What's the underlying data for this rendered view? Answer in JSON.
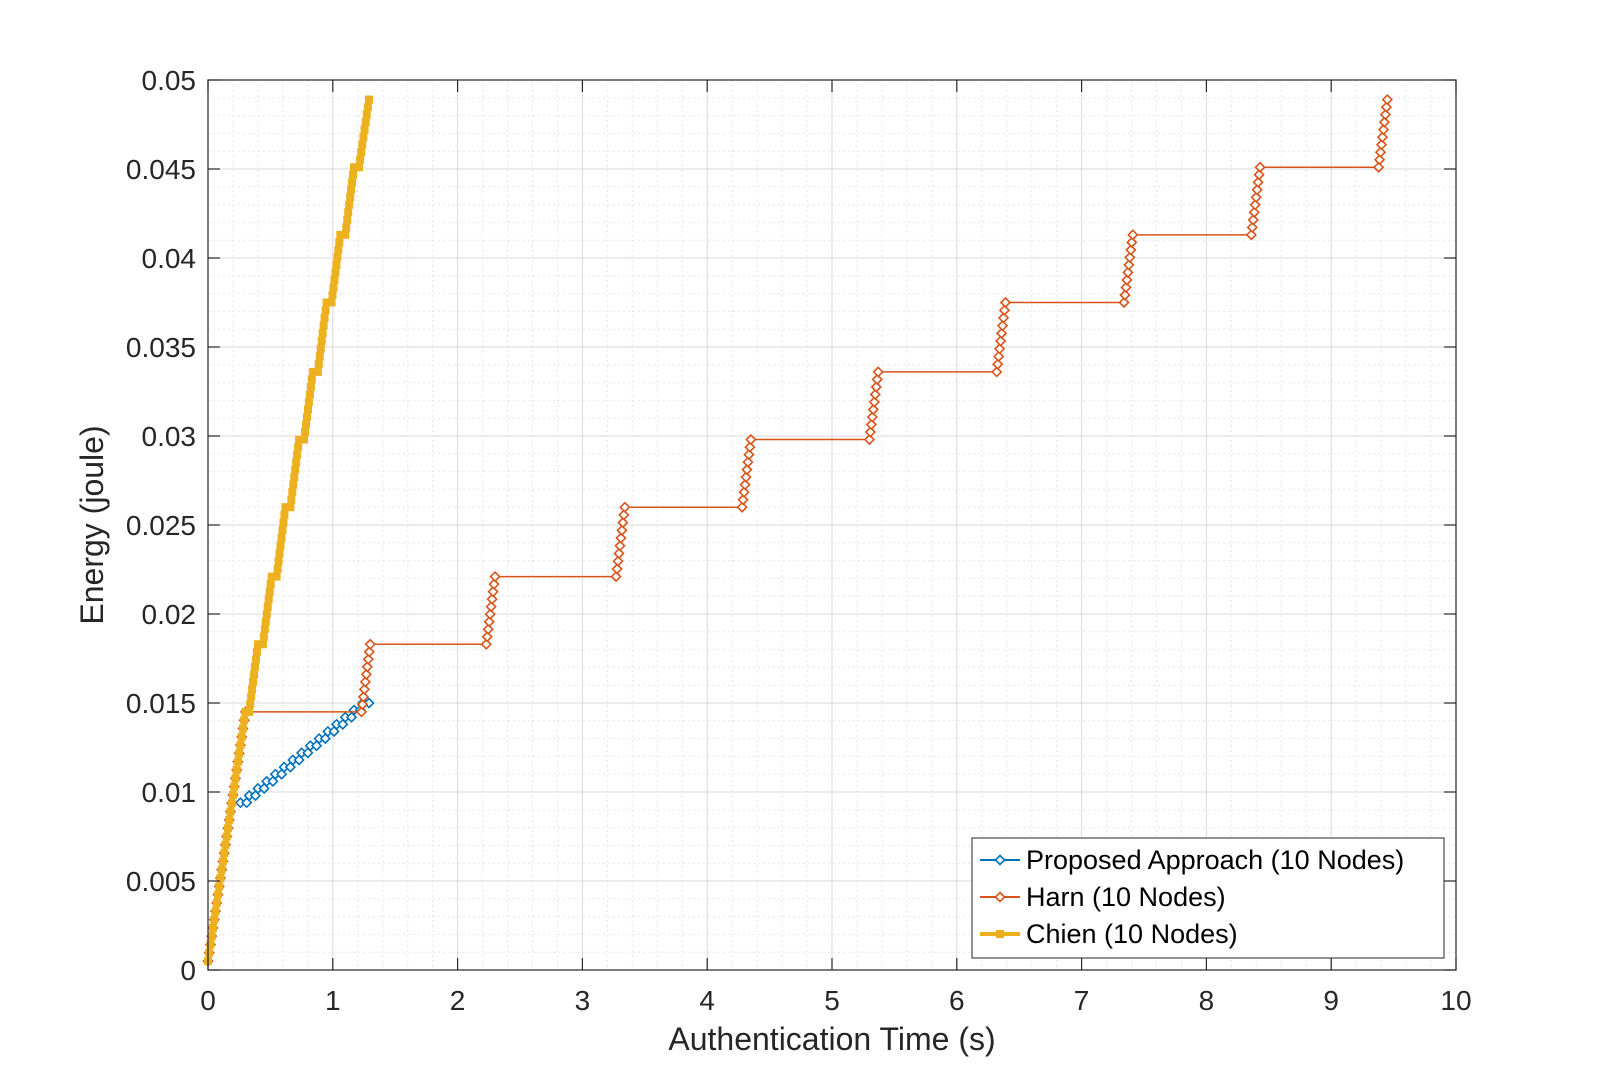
{
  "chart_data": {
    "type": "line",
    "title": "",
    "xlabel": "Authentication Time (s)",
    "ylabel": "Energy (joule)",
    "xlim": [
      0,
      10
    ],
    "ylim": [
      0,
      0.05
    ],
    "xticks": [
      0,
      1,
      2,
      3,
      4,
      5,
      6,
      7,
      8,
      9,
      10
    ],
    "xtick_labels": [
      "0",
      "1",
      "2",
      "3",
      "4",
      "5",
      "6",
      "7",
      "8",
      "9",
      "10"
    ],
    "yticks": [
      0,
      0.005,
      0.01,
      0.015,
      0.02,
      0.025,
      0.03,
      0.035,
      0.04,
      0.045,
      0.05
    ],
    "ytick_labels": [
      "0",
      "0.005",
      "0.01",
      "0.015",
      "0.02",
      "0.025",
      "0.03",
      "0.035",
      "0.04",
      "0.045",
      "0.05"
    ],
    "grid": true,
    "minor_grid": true,
    "legend_position": "bottom-right",
    "legend_entries": [
      "Proposed Approach (10 Nodes)",
      "Harn (10 Nodes)",
      "Chien (10 Nodes)"
    ],
    "series": [
      {
        "name": "Proposed Approach (10 Nodes)",
        "color": "#0072BD",
        "marker": "diamond",
        "line_width": 2,
        "points": [
          [
            0.26,
            0.0094
          ],
          [
            0.31,
            0.0094
          ],
          [
            0.33,
            0.0098
          ],
          [
            0.38,
            0.0098
          ],
          [
            0.4,
            0.0102
          ],
          [
            0.45,
            0.0102
          ],
          [
            0.47,
            0.0106
          ],
          [
            0.52,
            0.0106
          ],
          [
            0.54,
            0.011
          ],
          [
            0.59,
            0.011
          ],
          [
            0.61,
            0.0114
          ],
          [
            0.66,
            0.0114
          ],
          [
            0.68,
            0.0118
          ],
          [
            0.73,
            0.0118
          ],
          [
            0.75,
            0.0122
          ],
          [
            0.8,
            0.0122
          ],
          [
            0.82,
            0.0126
          ],
          [
            0.87,
            0.0126
          ],
          [
            0.89,
            0.013
          ],
          [
            0.94,
            0.013
          ],
          [
            0.96,
            0.0134
          ],
          [
            1.01,
            0.0134
          ],
          [
            1.03,
            0.0138
          ],
          [
            1.08,
            0.0138
          ],
          [
            1.1,
            0.0142
          ],
          [
            1.15,
            0.0142
          ],
          [
            1.17,
            0.0146
          ],
          [
            1.22,
            0.0146
          ],
          [
            1.24,
            0.015
          ],
          [
            1.29,
            0.015
          ]
        ]
      },
      {
        "name": "Harn (10 Nodes)",
        "color": "#D95319",
        "marker": "diamond",
        "line_width": 1.5,
        "points": [
          [
            0.0,
            0.0005
          ],
          [
            0.03,
            0.0019
          ],
          [
            0.06,
            0.0033
          ],
          [
            0.09,
            0.0047
          ],
          [
            0.12,
            0.0061
          ],
          [
            0.15,
            0.0075
          ],
          [
            0.18,
            0.0089
          ],
          [
            0.21,
            0.0103
          ],
          [
            0.24,
            0.0117
          ],
          [
            0.27,
            0.0131
          ],
          [
            0.3,
            0.0145
          ],
          [
            1.23,
            0.0145
          ],
          [
            1.3,
            0.0183
          ],
          [
            2.23,
            0.0183
          ],
          [
            2.3,
            0.0221
          ],
          [
            3.27,
            0.0221
          ],
          [
            3.34,
            0.026
          ],
          [
            4.28,
            0.026
          ],
          [
            4.35,
            0.0298
          ],
          [
            5.3,
            0.0298
          ],
          [
            5.37,
            0.0336
          ],
          [
            6.32,
            0.0336
          ],
          [
            6.39,
            0.0375
          ],
          [
            7.34,
            0.0375
          ],
          [
            7.41,
            0.0413
          ],
          [
            8.36,
            0.0413
          ],
          [
            8.43,
            0.0451
          ],
          [
            9.38,
            0.0451
          ],
          [
            9.45,
            0.0489
          ]
        ]
      },
      {
        "name": "Chien (10 Nodes)",
        "color": "#EDB120",
        "marker": "square",
        "line_width": 4,
        "points": [
          [
            0.0,
            0.0005
          ],
          [
            0.03,
            0.0019
          ],
          [
            0.06,
            0.0033
          ],
          [
            0.09,
            0.0047
          ],
          [
            0.12,
            0.0061
          ],
          [
            0.15,
            0.0075
          ],
          [
            0.18,
            0.0089
          ],
          [
            0.21,
            0.0103
          ],
          [
            0.24,
            0.0117
          ],
          [
            0.27,
            0.0131
          ],
          [
            0.3,
            0.0145
          ],
          [
            0.33,
            0.0145
          ],
          [
            0.4,
            0.0183
          ],
          [
            0.44,
            0.0183
          ],
          [
            0.51,
            0.0221
          ],
          [
            0.55,
            0.0221
          ],
          [
            0.62,
            0.026
          ],
          [
            0.66,
            0.026
          ],
          [
            0.73,
            0.0298
          ],
          [
            0.77,
            0.0298
          ],
          [
            0.84,
            0.0336
          ],
          [
            0.88,
            0.0336
          ],
          [
            0.95,
            0.0375
          ],
          [
            0.99,
            0.0375
          ],
          [
            1.06,
            0.0413
          ],
          [
            1.1,
            0.0413
          ],
          [
            1.17,
            0.0451
          ],
          [
            1.21,
            0.0451
          ],
          [
            1.29,
            0.0489
          ]
        ]
      }
    ]
  }
}
